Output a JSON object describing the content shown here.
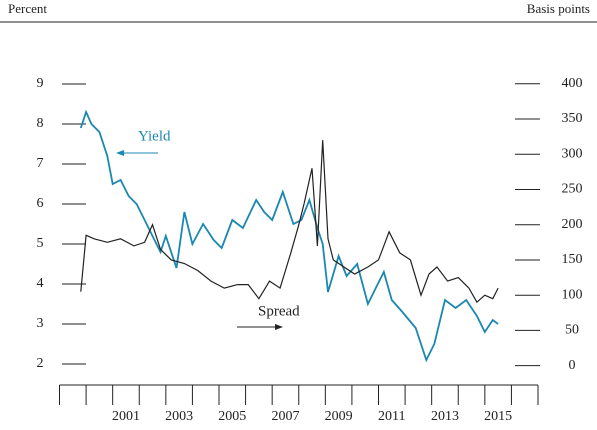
{
  "chart_data": {
    "type": "line",
    "y_axis_label": "Percent",
    "y2_axis_label": "Basis points",
    "annotations": [
      "Yield",
      "Spread"
    ],
    "xlim": [
      1999,
      2017
    ],
    "xticks": [
      1999,
      2000,
      2001,
      2002,
      2003,
      2004,
      2005,
      2006,
      2007,
      2008,
      2009,
      2010,
      2011,
      2012,
      2013,
      2014,
      2015,
      2016,
      2017
    ],
    "xtick_labels": [
      {
        "value": 2001.5,
        "label": "2001"
      },
      {
        "value": 2003.5,
        "label": "2003"
      },
      {
        "value": 2005.5,
        "label": "2005"
      },
      {
        "value": 2007.5,
        "label": "2007"
      },
      {
        "value": 2009.5,
        "label": "2009"
      },
      {
        "value": 2011.5,
        "label": "2011"
      },
      {
        "value": 2013.5,
        "label": "2013"
      },
      {
        "value": 2015.5,
        "label": "2015"
      }
    ],
    "ylim": [
      1.5,
      9.5
    ],
    "yticks": [
      2,
      3,
      4,
      5,
      6,
      7,
      8,
      9
    ],
    "y2lim": [
      -26,
      428
    ],
    "y2ticks": [
      0,
      50,
      100,
      150,
      200,
      250,
      300,
      350,
      400
    ],
    "series": [
      {
        "name": "Yield",
        "color": "#1a87b0",
        "axis": "y",
        "x": [
          1999.8,
          2000.0,
          2000.2,
          2000.5,
          2000.8,
          2001.0,
          2001.3,
          2001.6,
          2001.9,
          2002.2,
          2002.5,
          2002.8,
          2003.0,
          2003.4,
          2003.7,
          2004.0,
          2004.4,
          2004.8,
          2005.1,
          2005.5,
          2005.9,
          2006.4,
          2006.7,
          2007.0,
          2007.4,
          2007.8,
          2008.1,
          2008.4,
          2008.7,
          2008.9,
          2009.1,
          2009.5,
          2009.8,
          2010.2,
          2010.6,
          2010.9,
          2011.2,
          2011.5,
          2011.9,
          2012.4,
          2012.8,
          2013.1,
          2013.5,
          2013.9,
          2014.3,
          2014.7,
          2015.0,
          2015.3,
          2015.5
        ],
        "values": [
          7.9,
          8.3,
          8.0,
          7.8,
          7.2,
          6.5,
          6.6,
          6.2,
          6.0,
          5.6,
          5.2,
          4.8,
          5.2,
          4.4,
          5.8,
          5.0,
          5.5,
          5.1,
          4.9,
          5.6,
          5.4,
          6.1,
          5.8,
          5.6,
          6.3,
          5.5,
          5.6,
          6.1,
          5.4,
          5.0,
          3.8,
          4.7,
          4.2,
          4.5,
          3.5,
          3.9,
          4.3,
          3.6,
          3.3,
          2.9,
          2.1,
          2.5,
          3.6,
          3.4,
          3.6,
          3.2,
          2.8,
          3.1,
          3.0
        ]
      },
      {
        "name": "Spread",
        "color": "#222222",
        "axis": "y2",
        "x": [
          1999.8,
          2000.0,
          2000.3,
          2000.8,
          2001.3,
          2001.8,
          2002.2,
          2002.5,
          2002.8,
          2003.2,
          2003.7,
          2004.2,
          2004.7,
          2005.2,
          2005.7,
          2006.1,
          2006.5,
          2006.9,
          2007.3,
          2007.7,
          2008.0,
          2008.2,
          2008.5,
          2008.7,
          2008.9,
          2009.1,
          2009.3,
          2009.7,
          2010.1,
          2010.6,
          2011.0,
          2011.2,
          2011.4,
          2011.8,
          2012.2,
          2012.6,
          2012.9,
          2013.2,
          2013.6,
          2014.0,
          2014.4,
          2014.7,
          2015.0,
          2015.3,
          2015.5
        ],
        "values": [
          105,
          185,
          180,
          175,
          180,
          170,
          175,
          200,
          165,
          150,
          145,
          135,
          120,
          110,
          115,
          115,
          95,
          120,
          110,
          160,
          200,
          230,
          280,
          170,
          320,
          180,
          150,
          140,
          130,
          140,
          150,
          170,
          190,
          160,
          150,
          100,
          130,
          140,
          120,
          125,
          110,
          90,
          100,
          95,
          110
        ]
      }
    ]
  }
}
